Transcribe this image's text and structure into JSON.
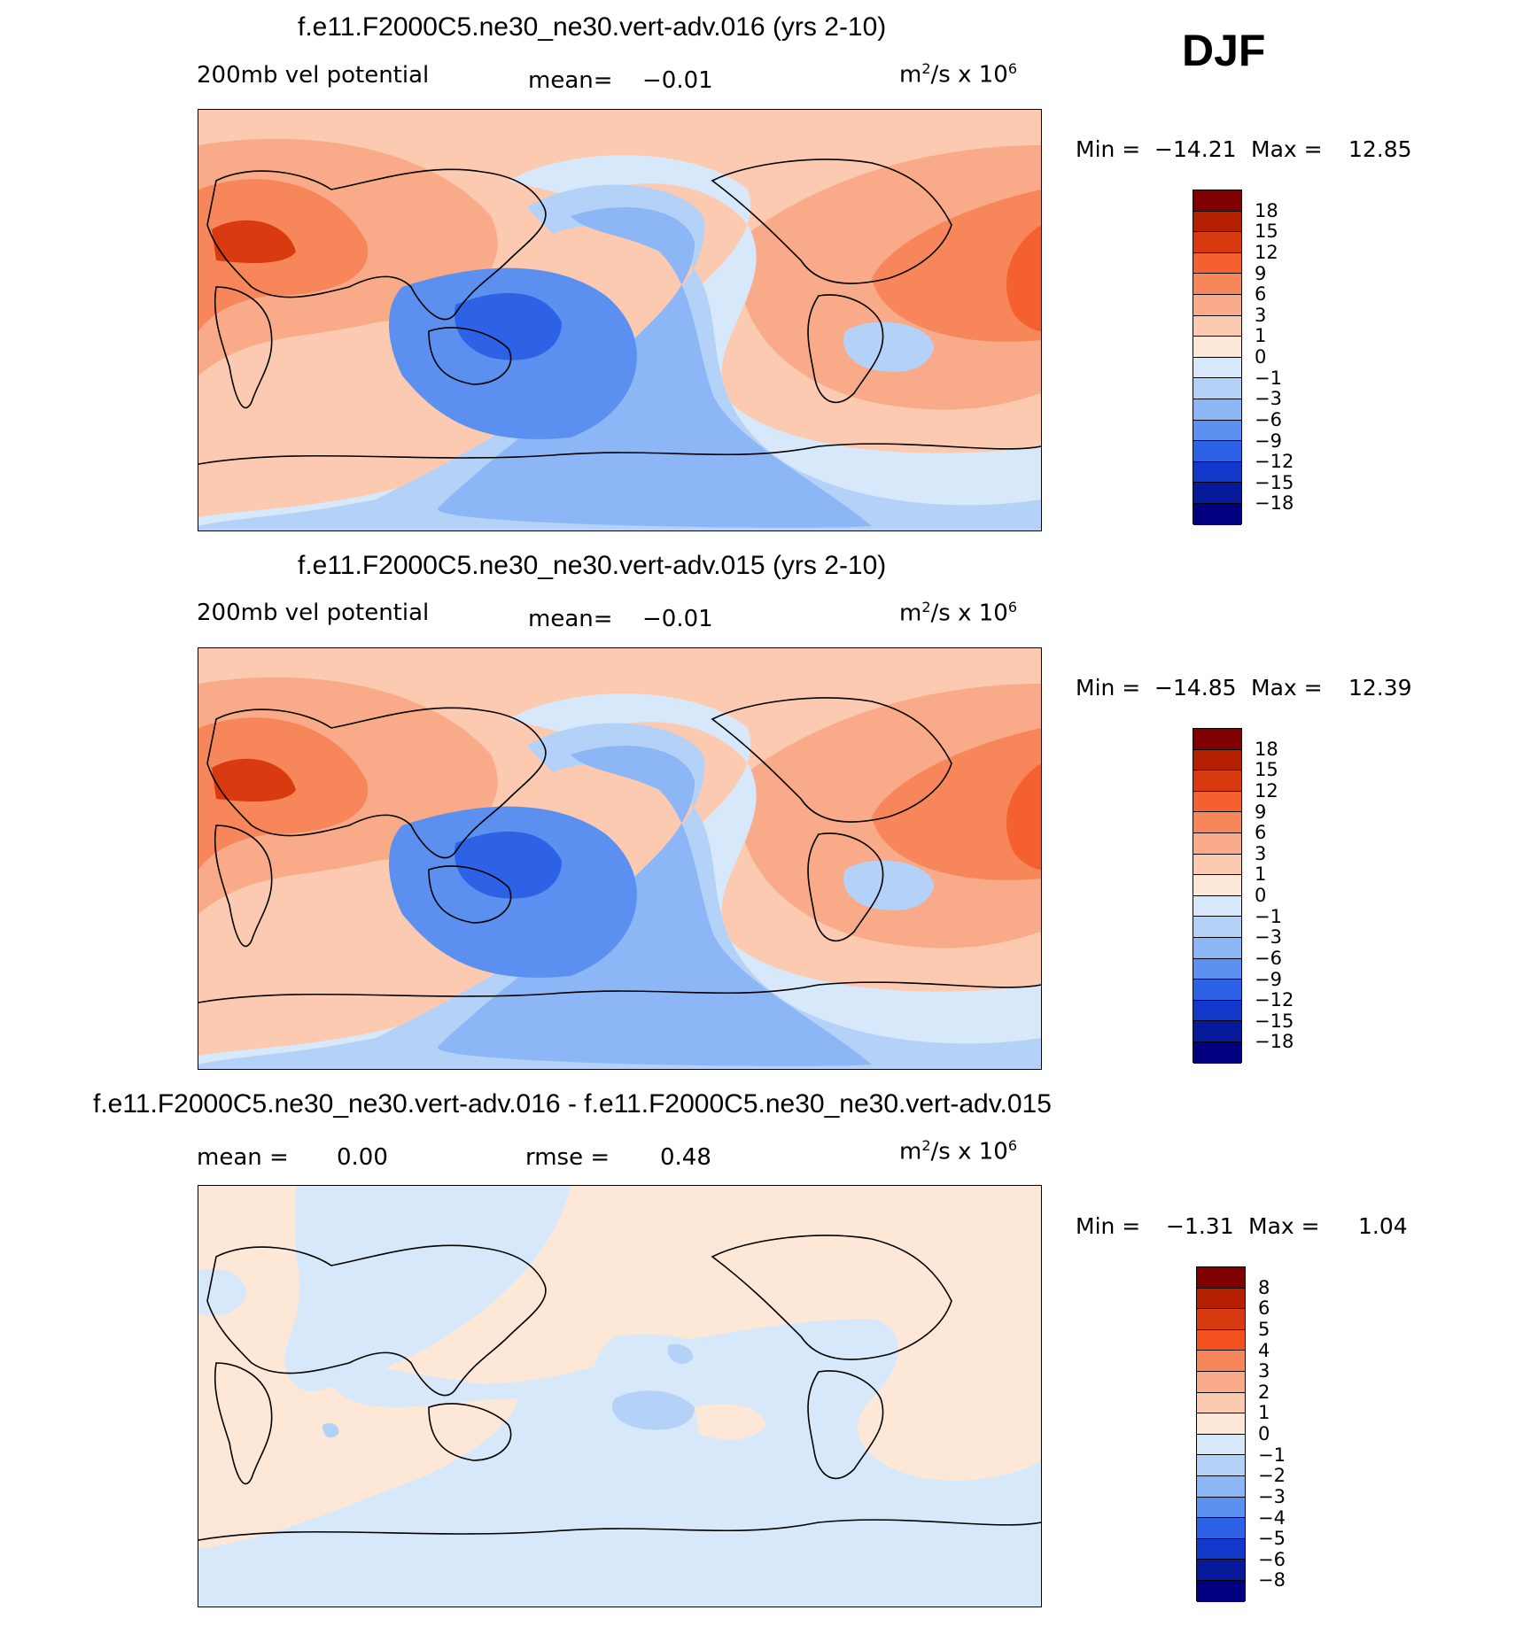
{
  "season": "DJF",
  "units_base": "m",
  "units_rest": "/s x 10",
  "units_sup2": "2",
  "units_sup6": "6",
  "panels": [
    {
      "title": "f.e11.F2000C5.ne30_ne30.vert-adv.016 (yrs 2-10)",
      "left_label": "200mb vel potential",
      "stat_label": "mean=",
      "stat_value": "−0.01",
      "min_label": "Min =",
      "min_value": "−14.21",
      "max_label": "Max =",
      "max_value": "12.85",
      "colorbar_labels": [
        "18",
        "15",
        "12",
        "9",
        "6",
        "3",
        "1",
        "0",
        "−1",
        "−3",
        "−6",
        "−9",
        "−12",
        "−15",
        "−18"
      ]
    },
    {
      "title": "f.e11.F2000C5.ne30_ne30.vert-adv.015 (yrs 2-10)",
      "left_label": "200mb vel potential",
      "stat_label": "mean=",
      "stat_value": "−0.01",
      "min_label": "Min =",
      "min_value": "−14.85",
      "max_label": "Max =",
      "max_value": "12.39",
      "colorbar_labels": [
        "18",
        "15",
        "12",
        "9",
        "6",
        "3",
        "1",
        "0",
        "−1",
        "−3",
        "−6",
        "−9",
        "−12",
        "−15",
        "−18"
      ]
    },
    {
      "title": "f.e11.F2000C5.ne30_ne30.vert-adv.016 - f.e11.F2000C5.ne30_ne30.vert-adv.015",
      "left_label": "mean =",
      "left_value": "0.00",
      "stat_label": "rmse =",
      "stat_value": "0.48",
      "min_label": "Min =",
      "min_value": "−1.31",
      "max_label": "Max =",
      "max_value": "1.04",
      "colorbar_labels": [
        "8",
        "6",
        "5",
        "4",
        "3",
        "2",
        "1",
        "0",
        "−1",
        "−2",
        "−3",
        "−4",
        "−5",
        "−6",
        "−8"
      ]
    }
  ],
  "colors": {
    "colorbar": [
      "#800000",
      "#b52000",
      "#d93a10",
      "#f46030",
      "#f7875a",
      "#f9aa88",
      "#fccab0",
      "#fde8d8",
      "#d6e8fa",
      "#b4d2f8",
      "#8cb6f6",
      "#5c90f0",
      "#2e62e6",
      "#1238cc",
      "#061a99",
      "#000080"
    ],
    "diff_colorbar": [
      "#800000",
      "#b52000",
      "#d93a10",
      "#f45020",
      "#f7875a",
      "#f9aa88",
      "#fccab0",
      "#fde8d8",
      "#d6e8fa",
      "#b4d2f8",
      "#8cb6f6",
      "#5c90f0",
      "#2e62e6",
      "#1238cc",
      "#061a99",
      "#000080"
    ],
    "coast": "#000000"
  }
}
